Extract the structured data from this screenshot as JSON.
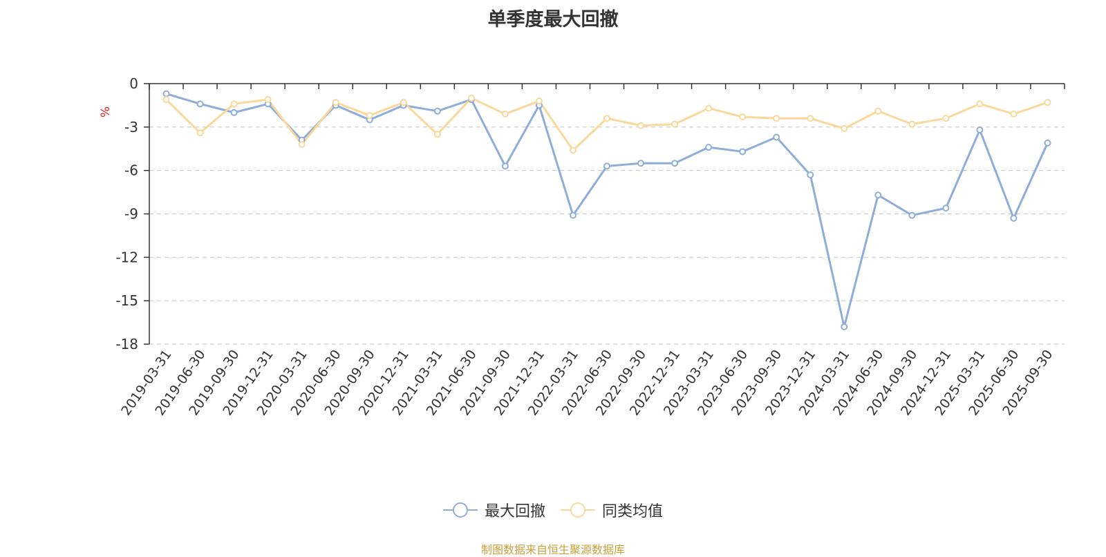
{
  "chart_data": {
    "type": "line",
    "title": "单季度最大回撤",
    "ylabel": "%",
    "ylim": [
      -18,
      0
    ],
    "yticks": [
      0,
      -3,
      -6,
      -9,
      -12,
      -15,
      -18
    ],
    "categories": [
      "2019-03-31",
      "2019-06-30",
      "2019-09-30",
      "2019-12-31",
      "2020-03-31",
      "2020-06-30",
      "2020-09-30",
      "2020-12-31",
      "2021-03-31",
      "2021-06-30",
      "2021-09-30",
      "2021-12-31",
      "2022-03-31",
      "2022-06-30",
      "2022-09-30",
      "2022-12-31",
      "2023-03-31",
      "2023-06-30",
      "2023-09-30",
      "2023-12-31",
      "2024-03-31",
      "2024-06-30",
      "2024-09-30",
      "2024-12-31",
      "2025-03-31",
      "2025-06-30",
      "2025-09-30"
    ],
    "series": [
      {
        "name": "最大回撤",
        "color": "#8eadd9",
        "values": [
          -0.7,
          -1.4,
          -2.0,
          -1.4,
          -3.9,
          -1.5,
          -2.5,
          -1.5,
          -1.9,
          -1.1,
          -5.7,
          -1.5,
          -9.1,
          -5.7,
          -5.5,
          -5.5,
          -4.4,
          -4.7,
          -3.7,
          -6.3,
          -16.8,
          -7.7,
          -9.1,
          -8.6,
          -3.2,
          -9.3,
          -4.1
        ]
      },
      {
        "name": "同类均值",
        "color": "#fad89b",
        "values": [
          -1.1,
          -3.4,
          -1.4,
          -1.1,
          -4.2,
          -1.3,
          -2.2,
          -1.3,
          -3.5,
          -1.0,
          -2.1,
          -1.2,
          -4.6,
          -2.4,
          -2.9,
          -2.8,
          -1.7,
          -2.3,
          -2.4,
          -2.4,
          -3.1,
          -1.9,
          -2.8,
          -2.4,
          -1.4,
          -2.1,
          -1.3
        ]
      }
    ],
    "legend_position": "bottom-center"
  },
  "footer": "制图数据来自恒生聚源数据库"
}
